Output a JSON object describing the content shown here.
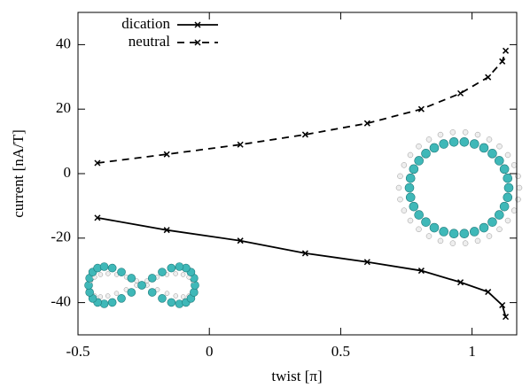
{
  "chart_data": {
    "type": "line",
    "x_label": "twist [π]",
    "y_label": "current [nA/T]",
    "x": [
      -0.426,
      -0.162,
      0.118,
      0.365,
      0.601,
      0.807,
      0.956,
      1.061,
      1.115,
      1.128
    ],
    "series": [
      {
        "name": "dication",
        "color": "#000000",
        "linestyle": "solid",
        "values": [
          -13.7,
          -17.5,
          -20.8,
          -24.7,
          -27.4,
          -30.1,
          -33.7,
          -36.7,
          -40.8,
          -44.4
        ]
      },
      {
        "name": "neutral",
        "color": "#000000",
        "linestyle": "dashed",
        "values": [
          3.3,
          6.0,
          9.0,
          12.1,
          15.6,
          20.0,
          24.9,
          29.9,
          34.8,
          38.1
        ]
      }
    ],
    "xlim": [
      -0.5,
      1.17
    ],
    "xticks": [
      -0.5,
      0,
      0.5,
      1
    ],
    "ylim": [
      -50,
      50
    ],
    "yticks": [
      -40,
      -20,
      0,
      20,
      40
    ],
    "grid": false,
    "legend": "top-left"
  }
}
